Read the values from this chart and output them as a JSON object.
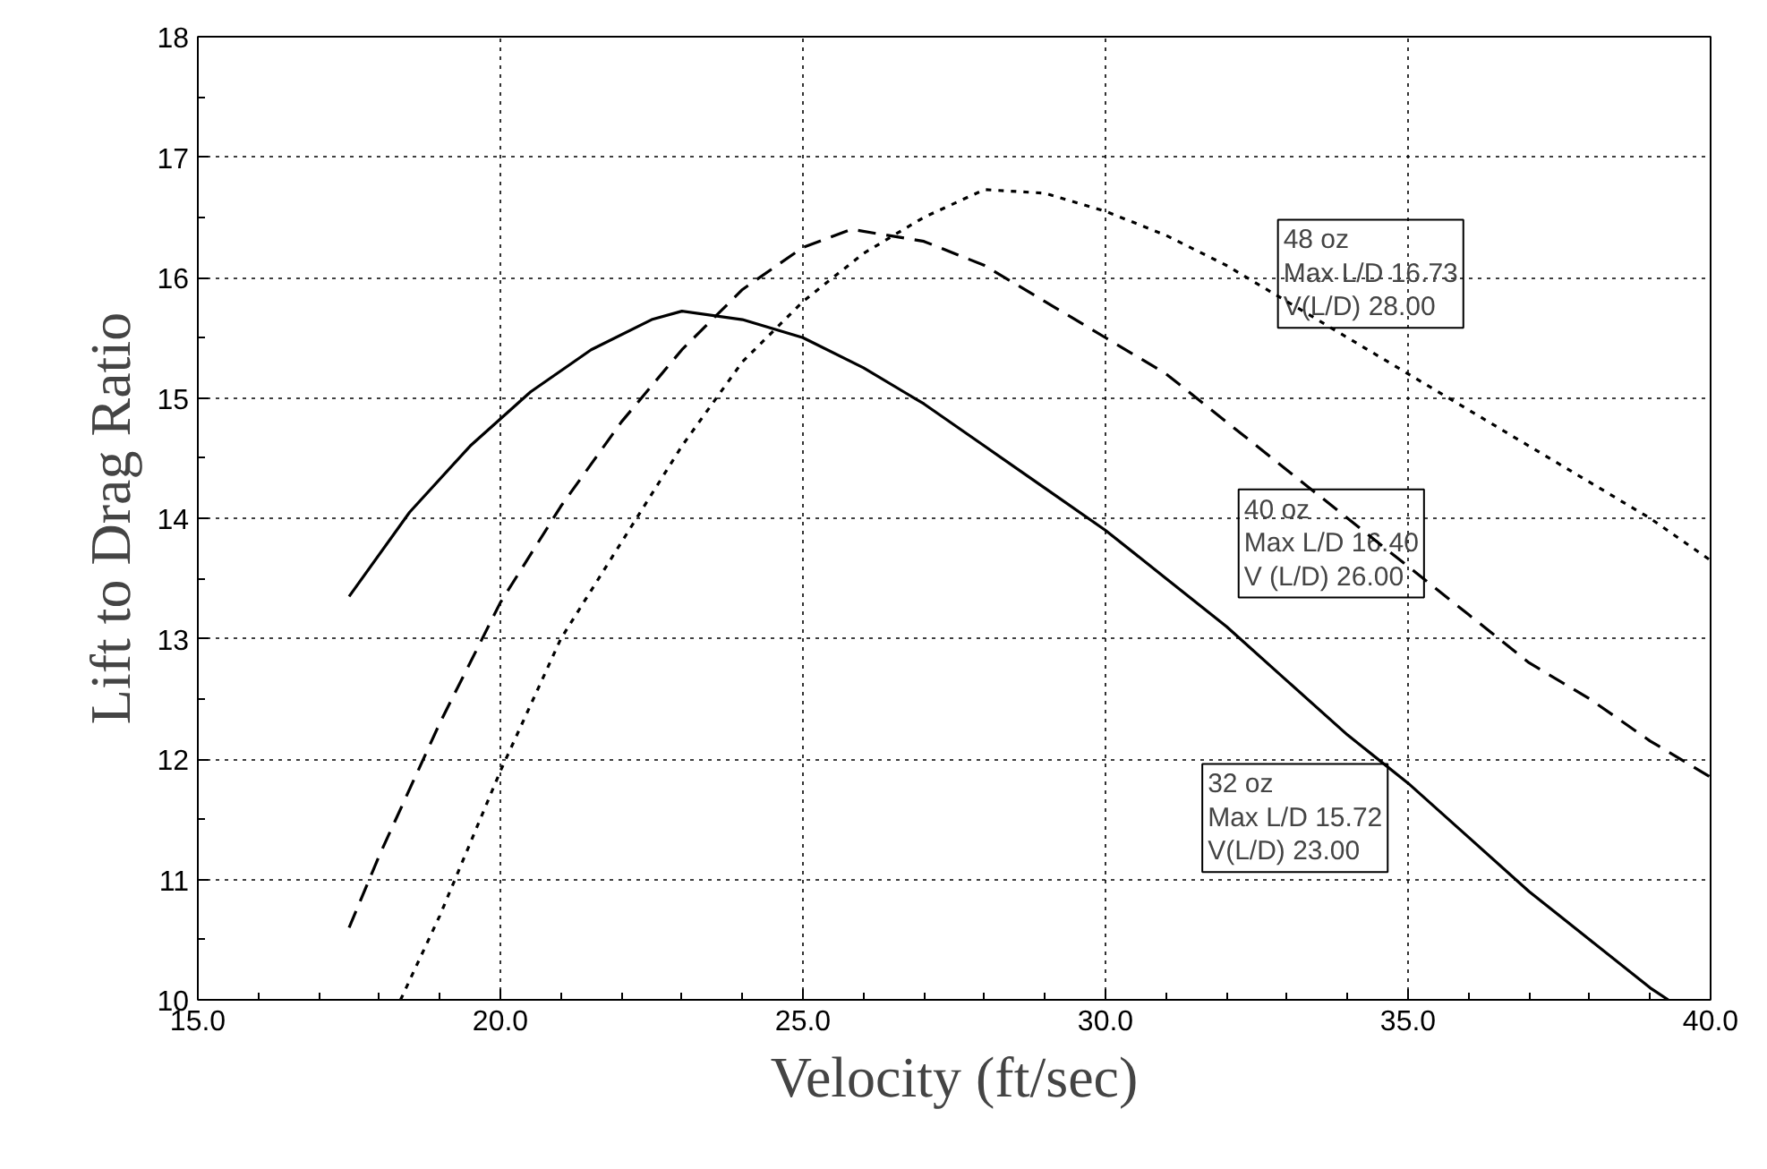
{
  "chart_data": {
    "type": "line",
    "xlabel": "Velocity (ft/sec)",
    "ylabel": "Lift to Drag Ratio",
    "xlim": [
      15,
      40
    ],
    "ylim": [
      10,
      18
    ],
    "xticks": [
      {
        "value": 15,
        "label": "15.0"
      },
      {
        "value": 20,
        "label": "20.0"
      },
      {
        "value": 25,
        "label": "25.0"
      },
      {
        "value": 30,
        "label": "30.0"
      },
      {
        "value": 35,
        "label": "35.0"
      },
      {
        "value": 40,
        "label": "40.0"
      }
    ],
    "yticks": [
      10,
      11,
      12,
      13,
      14,
      15,
      16,
      17,
      18
    ],
    "grid": true,
    "marker": "none",
    "series": [
      {
        "color": "#000000",
        "line_style": "solid",
        "x": [
          17.5,
          18.5,
          19.5,
          20.5,
          21.5,
          22.5,
          23,
          24,
          25,
          26,
          27,
          28,
          29,
          30,
          31,
          32,
          33,
          34,
          35,
          36,
          37,
          38,
          39,
          39.3
        ],
        "values": [
          13.35,
          14.05,
          14.6,
          15.05,
          15.4,
          15.65,
          15.72,
          15.65,
          15.5,
          15.25,
          14.95,
          14.6,
          14.25,
          13.9,
          13.5,
          13.1,
          12.65,
          12.2,
          11.8,
          11.35,
          10.9,
          10.5,
          10.1,
          10.0
        ]
      },
      {
        "color": "#000000",
        "line_style": "dashed",
        "x": [
          17.5,
          18,
          19,
          20,
          21,
          22,
          23,
          24,
          25,
          25.8,
          27,
          28,
          29,
          30,
          31,
          32,
          33,
          34,
          35,
          36,
          37,
          38,
          39,
          40
        ],
        "values": [
          10.6,
          11.2,
          12.3,
          13.3,
          14.1,
          14.8,
          15.4,
          15.9,
          16.25,
          16.4,
          16.3,
          16.1,
          15.8,
          15.5,
          15.2,
          14.8,
          14.4,
          14.0,
          13.6,
          13.2,
          12.8,
          12.5,
          12.15,
          11.85
        ]
      },
      {
        "color": "#000000",
        "line_style": "dotted",
        "x": [
          18.35,
          19,
          20,
          21,
          22,
          23,
          24,
          25,
          26,
          27,
          28,
          29,
          30,
          31,
          32,
          33,
          34,
          35,
          36,
          37,
          38,
          39,
          40
        ],
        "values": [
          10.0,
          10.7,
          11.9,
          13.0,
          13.8,
          14.6,
          15.3,
          15.8,
          16.2,
          16.5,
          16.73,
          16.7,
          16.55,
          16.35,
          16.1,
          15.8,
          15.5,
          15.2,
          14.9,
          14.6,
          14.3,
          14.0,
          13.65
        ]
      }
    ],
    "annotations": [
      "      48 oz\nMax L/D 16.73\nV(L/D)  28.00",
      "      40 oz\nMax L/D 16.40\nV (L/D)  26.00",
      "      32 oz\nMax L/D 15.72\nV(L/D)    23.00"
    ]
  }
}
